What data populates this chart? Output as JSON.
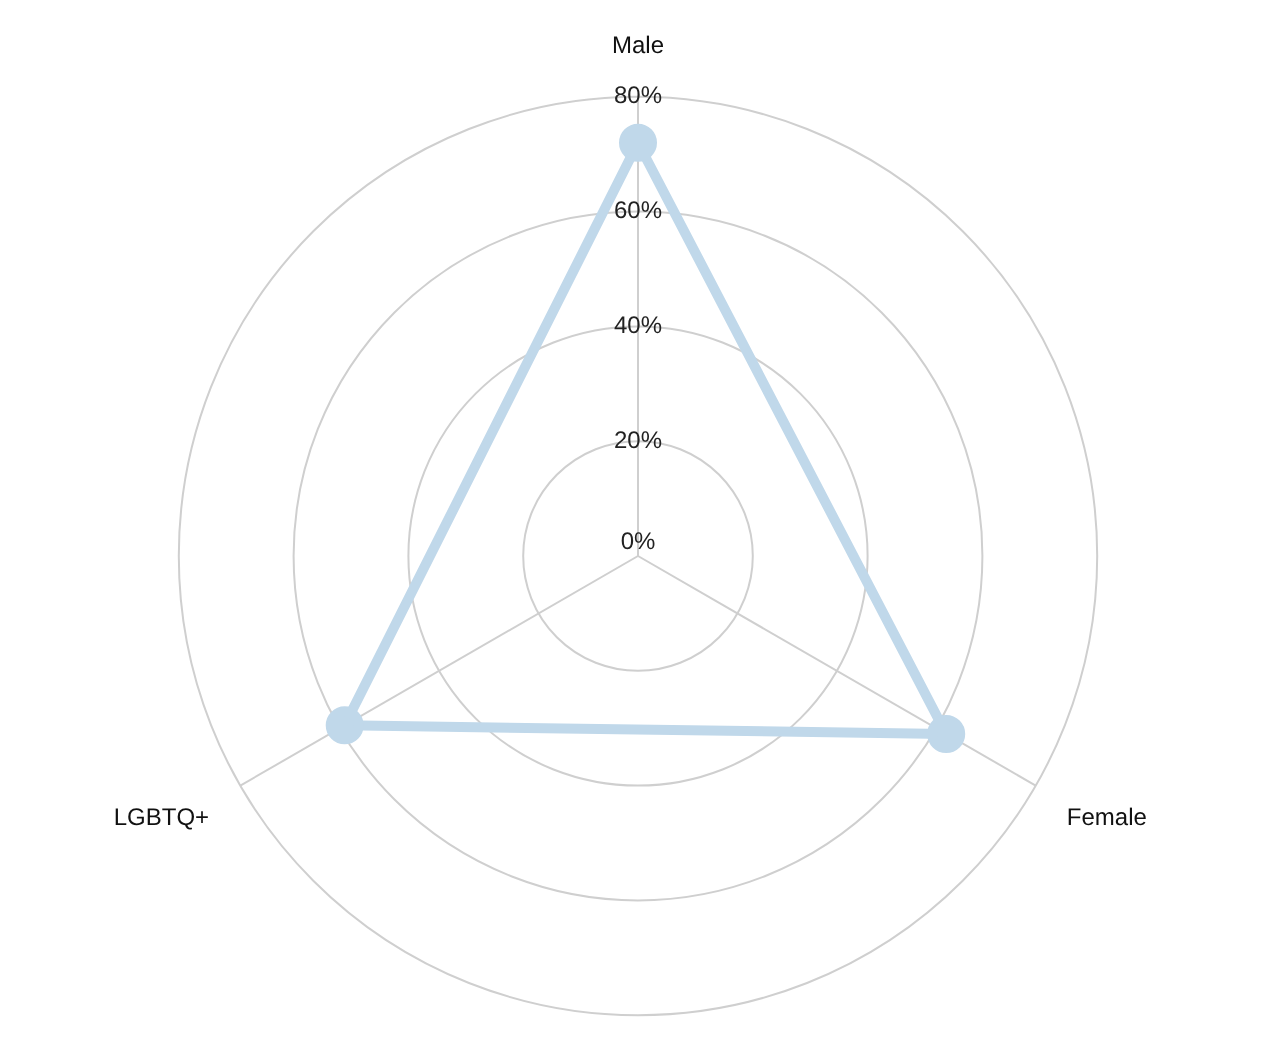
{
  "chart_data": {
    "type": "radar",
    "categories": [
      "Male",
      "Female",
      "LGBTQ+"
    ],
    "series": [
      {
        "color": "#c0d8ea",
        "values": [
          72,
          62,
          59
        ]
      }
    ],
    "ylim": [
      0,
      80
    ],
    "yticks": [
      {
        "value": 0,
        "label": "0%"
      },
      {
        "value": 20,
        "label": "20%"
      },
      {
        "value": 40,
        "label": "40%"
      },
      {
        "value": 60,
        "label": "60%"
      },
      {
        "value": 80,
        "label": "80%"
      }
    ],
    "grid": true,
    "legend": false,
    "marker": "circle"
  }
}
